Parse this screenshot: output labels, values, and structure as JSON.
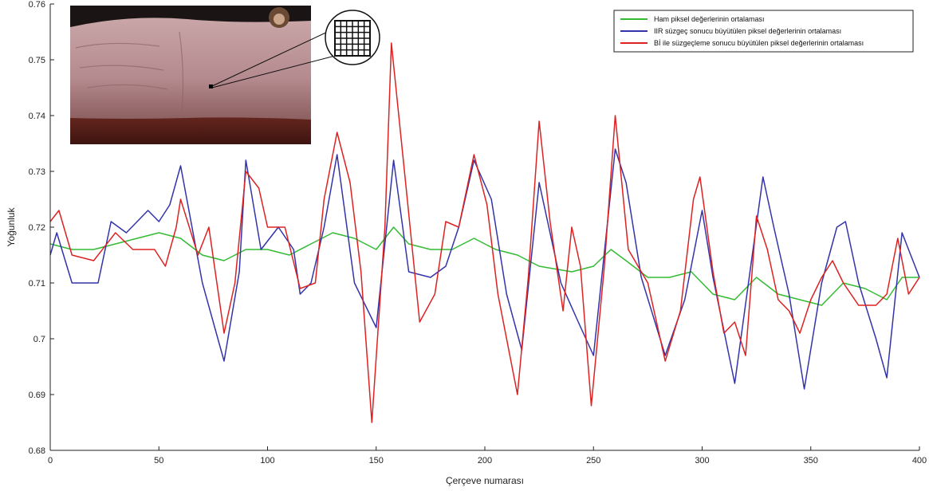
{
  "chart_data": {
    "type": "line",
    "title": "",
    "xlabel": "Çerçeve numarası",
    "ylabel": "Yoğunluk",
    "xlim": [
      0,
      400
    ],
    "ylim": [
      0.68,
      0.76
    ],
    "xticks": [
      0,
      50,
      100,
      150,
      200,
      250,
      300,
      350,
      400
    ],
    "yticks": [
      0.68,
      0.69,
      0.7,
      0.71,
      0.72,
      0.73,
      0.74,
      0.75,
      0.76
    ],
    "ytick_labels": [
      "0.68",
      "0.69",
      "0.7",
      "0.71",
      "0.72",
      "0.73",
      "0.74",
      "0.75",
      "0.76"
    ],
    "grid": false,
    "legend_position": "top-right",
    "series": [
      {
        "name": "Ham piksel değerlerinin ortalaması",
        "color": "#33bb33",
        "points": [
          [
            0,
            0.717
          ],
          [
            10,
            0.716
          ],
          [
            20,
            0.716
          ],
          [
            30,
            0.717
          ],
          [
            40,
            0.718
          ],
          [
            50,
            0.719
          ],
          [
            60,
            0.718
          ],
          [
            70,
            0.715
          ],
          [
            80,
            0.714
          ],
          [
            90,
            0.716
          ],
          [
            100,
            0.716
          ],
          [
            110,
            0.715
          ],
          [
            120,
            0.717
          ],
          [
            130,
            0.719
          ],
          [
            140,
            0.718
          ],
          [
            150,
            0.716
          ],
          [
            158,
            0.72
          ],
          [
            165,
            0.717
          ],
          [
            175,
            0.716
          ],
          [
            185,
            0.716
          ],
          [
            195,
            0.718
          ],
          [
            205,
            0.716
          ],
          [
            215,
            0.715
          ],
          [
            225,
            0.713
          ],
          [
            240,
            0.712
          ],
          [
            250,
            0.713
          ],
          [
            258,
            0.716
          ],
          [
            265,
            0.714
          ],
          [
            275,
            0.711
          ],
          [
            285,
            0.711
          ],
          [
            295,
            0.712
          ],
          [
            305,
            0.708
          ],
          [
            315,
            0.707
          ],
          [
            325,
            0.711
          ],
          [
            335,
            0.708
          ],
          [
            345,
            0.707
          ],
          [
            355,
            0.706
          ],
          [
            365,
            0.71
          ],
          [
            375,
            0.709
          ],
          [
            385,
            0.707
          ],
          [
            392,
            0.711
          ],
          [
            400,
            0.711
          ]
        ]
      },
      {
        "name": "IIR süzgeç sonucu büyütülen piksel değerlerinin ortalaması",
        "color": "#3333aa",
        "points": [
          [
            0,
            0.715
          ],
          [
            3,
            0.719
          ],
          [
            10,
            0.71
          ],
          [
            15,
            0.71
          ],
          [
            22,
            0.71
          ],
          [
            28,
            0.721
          ],
          [
            35,
            0.719
          ],
          [
            45,
            0.723
          ],
          [
            50,
            0.721
          ],
          [
            55,
            0.724
          ],
          [
            60,
            0.731
          ],
          [
            70,
            0.71
          ],
          [
            80,
            0.696
          ],
          [
            87,
            0.712
          ],
          [
            90,
            0.732
          ],
          [
            97,
            0.716
          ],
          [
            105,
            0.72
          ],
          [
            112,
            0.716
          ],
          [
            115,
            0.708
          ],
          [
            120,
            0.71
          ],
          [
            126,
            0.72
          ],
          [
            132,
            0.733
          ],
          [
            140,
            0.71
          ],
          [
            150,
            0.702
          ],
          [
            158,
            0.732
          ],
          [
            165,
            0.712
          ],
          [
            175,
            0.711
          ],
          [
            182,
            0.713
          ],
          [
            188,
            0.72
          ],
          [
            195,
            0.732
          ],
          [
            203,
            0.725
          ],
          [
            210,
            0.708
          ],
          [
            217,
            0.698
          ],
          [
            225,
            0.728
          ],
          [
            235,
            0.71
          ],
          [
            243,
            0.703
          ],
          [
            250,
            0.697
          ],
          [
            260,
            0.734
          ],
          [
            265,
            0.728
          ],
          [
            272,
            0.711
          ],
          [
            283,
            0.697
          ],
          [
            292,
            0.707
          ],
          [
            300,
            0.723
          ],
          [
            305,
            0.711
          ],
          [
            315,
            0.692
          ],
          [
            322,
            0.712
          ],
          [
            328,
            0.729
          ],
          [
            333,
            0.72
          ],
          [
            340,
            0.708
          ],
          [
            347,
            0.691
          ],
          [
            355,
            0.71
          ],
          [
            362,
            0.72
          ],
          [
            366,
            0.721
          ],
          [
            372,
            0.71
          ],
          [
            380,
            0.7
          ],
          [
            385,
            0.693
          ],
          [
            392,
            0.719
          ],
          [
            400,
            0.711
          ]
        ]
      },
      {
        "name": "Bİ ile süzgeçleme sonucu büyütülen piksel değerlerinin ortalaması",
        "color": "#dd2222",
        "points": [
          [
            0,
            0.721
          ],
          [
            4,
            0.723
          ],
          [
            10,
            0.715
          ],
          [
            20,
            0.714
          ],
          [
            30,
            0.719
          ],
          [
            38,
            0.716
          ],
          [
            48,
            0.716
          ],
          [
            53,
            0.713
          ],
          [
            58,
            0.72
          ],
          [
            60,
            0.725
          ],
          [
            68,
            0.715
          ],
          [
            73,
            0.72
          ],
          [
            80,
            0.701
          ],
          [
            85,
            0.71
          ],
          [
            90,
            0.73
          ],
          [
            96,
            0.727
          ],
          [
            100,
            0.72
          ],
          [
            108,
            0.72
          ],
          [
            115,
            0.709
          ],
          [
            122,
            0.71
          ],
          [
            126,
            0.725
          ],
          [
            132,
            0.737
          ],
          [
            138,
            0.728
          ],
          [
            143,
            0.712
          ],
          [
            148,
            0.685
          ],
          [
            154,
            0.72
          ],
          [
            157,
            0.753
          ],
          [
            163,
            0.73
          ],
          [
            170,
            0.703
          ],
          [
            177,
            0.708
          ],
          [
            182,
            0.721
          ],
          [
            188,
            0.72
          ],
          [
            195,
            0.733
          ],
          [
            201,
            0.724
          ],
          [
            206,
            0.708
          ],
          [
            215,
            0.69
          ],
          [
            220,
            0.711
          ],
          [
            225,
            0.739
          ],
          [
            230,
            0.721
          ],
          [
            236,
            0.705
          ],
          [
            240,
            0.72
          ],
          [
            244,
            0.713
          ],
          [
            249,
            0.688
          ],
          [
            255,
            0.713
          ],
          [
            260,
            0.74
          ],
          [
            266,
            0.716
          ],
          [
            275,
            0.71
          ],
          [
            283,
            0.696
          ],
          [
            290,
            0.705
          ],
          [
            296,
            0.725
          ],
          [
            299,
            0.729
          ],
          [
            305,
            0.712
          ],
          [
            310,
            0.701
          ],
          [
            315,
            0.703
          ],
          [
            320,
            0.697
          ],
          [
            325,
            0.722
          ],
          [
            330,
            0.716
          ],
          [
            335,
            0.707
          ],
          [
            340,
            0.705
          ],
          [
            345,
            0.701
          ],
          [
            350,
            0.707
          ],
          [
            355,
            0.711
          ],
          [
            360,
            0.714
          ],
          [
            365,
            0.71
          ],
          [
            372,
            0.706
          ],
          [
            380,
            0.706
          ],
          [
            385,
            0.708
          ],
          [
            390,
            0.718
          ],
          [
            395,
            0.708
          ],
          [
            400,
            0.711
          ]
        ]
      }
    ]
  }
}
